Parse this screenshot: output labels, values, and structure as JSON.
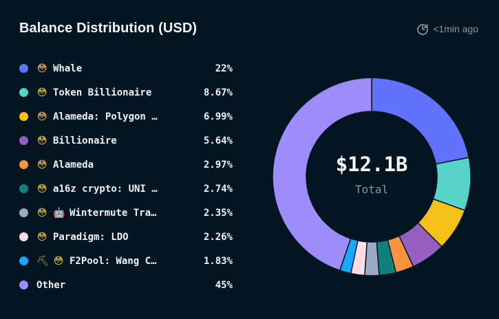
{
  "header": {
    "title": "Balance Distribution (USD)",
    "updated": "<1min ago",
    "updated_icon": "refresh-clock-icon"
  },
  "colors": {
    "background": "#041522",
    "slice_border": "#041522"
  },
  "legend": [
    {
      "label": "Whale",
      "pct": "22%",
      "color": "#6173fa",
      "icons": [
        "face-icon"
      ],
      "glyphs": [
        "😳"
      ]
    },
    {
      "label": "Token Billionaire",
      "pct": "8.67%",
      "color": "#57d3c9",
      "icons": [
        "face-icon"
      ],
      "glyphs": [
        "😳"
      ]
    },
    {
      "label": "Alameda: Polygon …",
      "pct": "6.99%",
      "color": "#f5c118",
      "icons": [
        "face-icon"
      ],
      "glyphs": [
        "😳"
      ]
    },
    {
      "label": "Billionaire",
      "pct": "5.64%",
      "color": "#955fc2",
      "icons": [
        "face-icon"
      ],
      "glyphs": [
        "😳"
      ]
    },
    {
      "label": "Alameda",
      "pct": "2.97%",
      "color": "#f69440",
      "icons": [
        "face-icon"
      ],
      "glyphs": [
        "😳"
      ]
    },
    {
      "label": "a16z crypto: UNI …",
      "pct": "2.74%",
      "color": "#0f807e",
      "icons": [
        "face-icon"
      ],
      "glyphs": [
        "😳"
      ]
    },
    {
      "label": "Wintermute Tra…",
      "pct": "2.35%",
      "color": "#9ca8c4",
      "icons": [
        "face-icon",
        "robot-icon"
      ],
      "glyphs": [
        "😳",
        "🤖"
      ]
    },
    {
      "label": "Paradigm: LDO",
      "pct": "2.26%",
      "color": "#fddde8",
      "icons": [
        "face-icon"
      ],
      "glyphs": [
        "😳"
      ]
    },
    {
      "label": "F2Pool: Wang C…",
      "pct": "1.83%",
      "color": "#16a9f7",
      "icons": [
        "pick-icon",
        "face-icon"
      ],
      "glyphs": [
        "⛏",
        "😳"
      ]
    },
    {
      "label": "Other",
      "pct": "45%",
      "color": "#9e8cfb",
      "icons": [],
      "glyphs": []
    }
  ],
  "chart_data": {
    "type": "pie",
    "variant": "donut",
    "center_value": "$12.1B",
    "center_label": "Total",
    "categories": [
      "Whale",
      "Token Billionaire",
      "Alameda: Polygon …",
      "Billionaire",
      "Alameda",
      "a16z crypto: UNI …",
      "Wintermute Tra…",
      "Paradigm: LDO",
      "F2Pool: Wang C…",
      "Other"
    ],
    "values": [
      22,
      8.67,
      6.99,
      5.64,
      2.97,
      2.74,
      2.35,
      2.26,
      1.83,
      45
    ],
    "colors": [
      "#6173fa",
      "#57d3c9",
      "#f5c118",
      "#955fc2",
      "#f69440",
      "#0f807e",
      "#9ca8c4",
      "#fddde8",
      "#16a9f7",
      "#9e8cfb"
    ],
    "legend_position": "left"
  }
}
